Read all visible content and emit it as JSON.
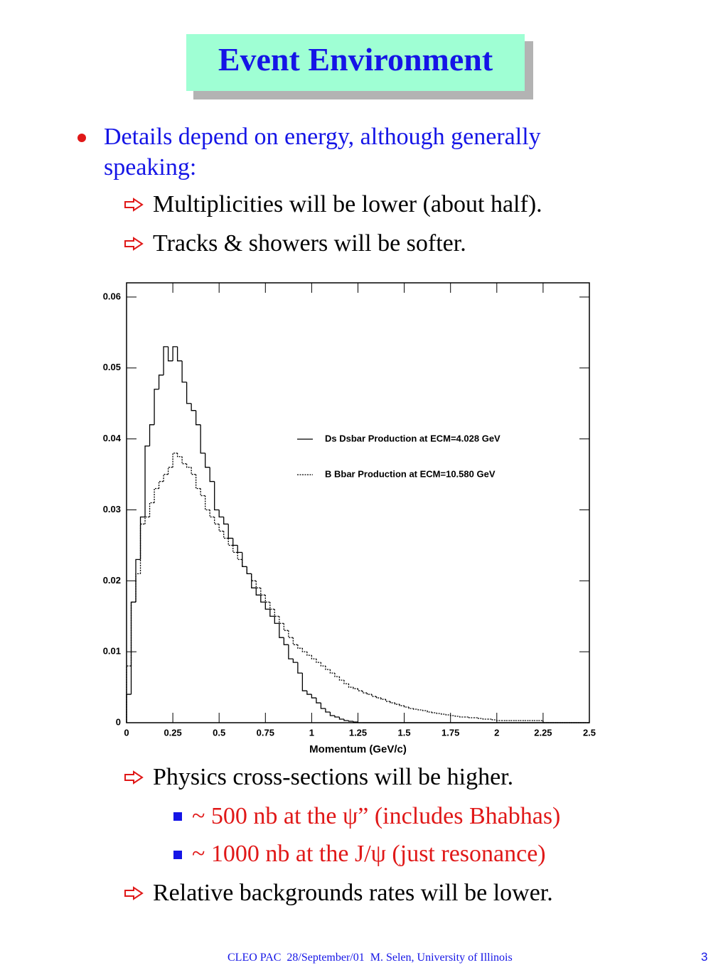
{
  "title": "Event Environment",
  "bullets": [
    {
      "text": "Details depend on energy, although generally speaking:"
    }
  ],
  "items_before": [
    "Multiplicities will be lower (about half).",
    "Tracks & showers will be softer."
  ],
  "chart_data": {
    "type": "histogram",
    "xlabel": "Momentum (GeV/c)",
    "bins": [
      0,
      0.025,
      0.05,
      0.075,
      0.1,
      0.125,
      0.15,
      0.175,
      0.2,
      0.225,
      0.25,
      0.275,
      0.3,
      0.325,
      0.35,
      0.375,
      0.4,
      0.425,
      0.45,
      0.475,
      0.5,
      0.525,
      0.55,
      0.575,
      0.6,
      0.625,
      0.65,
      0.675,
      0.7,
      0.725,
      0.75,
      0.775,
      0.8,
      0.825,
      0.85,
      0.875,
      0.9,
      0.925,
      0.95,
      0.975,
      1,
      1.025,
      1.05,
      1.075,
      1.1,
      1.125,
      1.15,
      1.175,
      1.2,
      1.225,
      1.25,
      1.275,
      1.3,
      1.325,
      1.35,
      1.375,
      1.4,
      1.425,
      1.45,
      1.475,
      1.5,
      1.525,
      1.55,
      1.575,
      1.6,
      1.625,
      1.65,
      1.675,
      1.7,
      1.725,
      1.75,
      1.775,
      1.8,
      1.825,
      1.85,
      1.875,
      1.9,
      1.925,
      1.95,
      1.975,
      2,
      2.025,
      2.05,
      2.075,
      2.1,
      2.125,
      2.15,
      2.175,
      2.2,
      2.225,
      2.25,
      2.275,
      2.3,
      2.325,
      2.35,
      2.375,
      2.4,
      2.425,
      2.45,
      2.475,
      2.5
    ],
    "series": [
      {
        "name": "Ds Dsbar Production at ECM=4.028 GeV",
        "color": "#000000",
        "dash": "solid",
        "values": [
          0.004,
          0.017,
          0.023,
          0.029,
          0.039,
          0.042,
          0.047,
          0.049,
          0.053,
          0.051,
          0.053,
          0.051,
          0.048,
          0.045,
          0.044,
          0.042,
          0.038,
          0.036,
          0.034,
          0.03,
          0.029,
          0.028,
          0.026,
          0.025,
          0.024,
          0.022,
          0.021,
          0.019,
          0.018,
          0.017,
          0.016,
          0.015,
          0.014,
          0.012,
          0.011,
          0.009,
          0.0085,
          0.007,
          0.0045,
          0.004,
          0.0035,
          0.0028,
          0.002,
          0.0015,
          0.001,
          0.0008,
          0.0005,
          0.0003,
          0.0002,
          0.0001,
          0,
          0,
          0,
          0,
          0,
          0,
          0,
          0,
          0,
          0,
          0,
          0,
          0,
          0,
          0,
          0,
          0,
          0,
          0,
          0,
          0,
          0,
          0,
          0,
          0,
          0,
          0,
          0,
          0,
          0,
          0,
          0,
          0,
          0,
          0,
          0,
          0,
          0,
          0,
          0,
          0,
          0,
          0,
          0,
          0,
          0,
          0,
          0,
          0,
          0
        ]
      },
      {
        "name": "B Bbar Production at ECM=10.580 GeV",
        "color": "#000000",
        "dash": "dashed",
        "values": [
          0.008,
          0.017,
          0.021,
          0.028,
          0.029,
          0.031,
          0.033,
          0.034,
          0.035,
          0.036,
          0.038,
          0.0375,
          0.0365,
          0.036,
          0.035,
          0.033,
          0.032,
          0.03,
          0.029,
          0.028,
          0.027,
          0.026,
          0.025,
          0.024,
          0.023,
          0.022,
          0.021,
          0.02,
          0.019,
          0.018,
          0.017,
          0.016,
          0.015,
          0.014,
          0.013,
          0.012,
          0.011,
          0.0105,
          0.01,
          0.0095,
          0.009,
          0.0085,
          0.008,
          0.0075,
          0.007,
          0.0065,
          0.006,
          0.0055,
          0.005,
          0.0048,
          0.0045,
          0.0042,
          0.004,
          0.0037,
          0.0035,
          0.0033,
          0.003,
          0.0028,
          0.0026,
          0.0024,
          0.0022,
          0.002,
          0.0019,
          0.0018,
          0.0017,
          0.0015,
          0.0014,
          0.0013,
          0.0012,
          0.0011,
          0.001,
          0.0009,
          0.0008,
          0.0008,
          0.0007,
          0.0007,
          0.0006,
          0.0005,
          0.0005,
          0.0004,
          0.0003,
          0.0003,
          0.0003,
          0.0003,
          0.0003,
          0.0003,
          0.0003,
          0.0003,
          0.0003,
          0.0003,
          0,
          0,
          0,
          0,
          0,
          0,
          0,
          0,
          0,
          0
        ]
      }
    ],
    "xlim": [
      0,
      2.5
    ],
    "ylim": [
      0,
      0.062
    ],
    "xticks": [
      0,
      0.25,
      0.5,
      0.75,
      1,
      1.25,
      1.5,
      1.75,
      2,
      2.25,
      2.5
    ],
    "yticks": [
      0,
      0.01,
      0.02,
      0.03,
      0.04,
      0.05,
      0.06
    ],
    "legend": "upper right",
    "grid": false
  },
  "items_after": [
    {
      "text": "Physics cross-sections will be higher.",
      "sub": [
        "~ 500 nb at the ψ” (includes Bhabhas)",
        "~ 1000 nb at the J/ψ (just resonance)"
      ]
    },
    {
      "text": "Relative backgrounds rates will be lower."
    }
  ],
  "footer": "CLEO PAC  28/September/01  M. Selen, University of Illinois",
  "page_number": 3
}
